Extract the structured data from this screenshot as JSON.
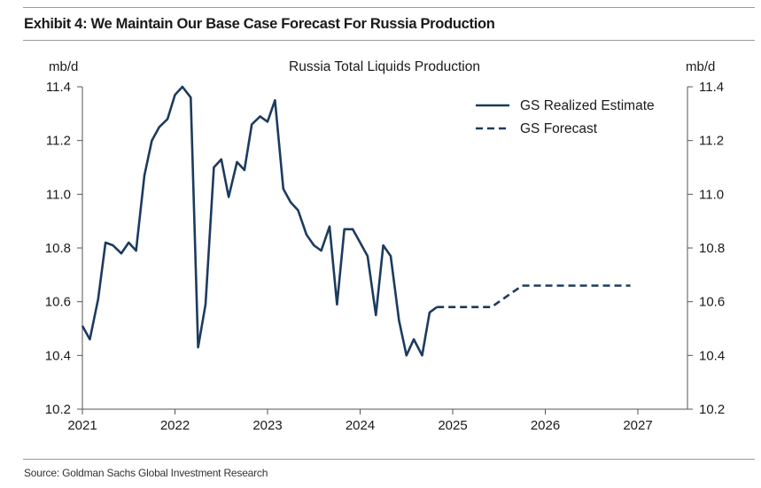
{
  "header": {
    "exhibit_title": "Exhibit 4: We Maintain Our Base Case Forecast For Russia Production"
  },
  "footer": {
    "source": "Source: Goldman Sachs Global Investment Research"
  },
  "colors": {
    "series": "#1c3b5e",
    "axis": "#555555",
    "rule": "#9a9a9a"
  },
  "chart_data": {
    "type": "line",
    "title": "Russia Total Liquids Production",
    "ylabel_left": "mb/d",
    "ylabel_right": "mb/d",
    "xlabel": "",
    "xlim": [
      2021.0,
      2027.5
    ],
    "ylim": [
      10.2,
      11.4
    ],
    "x_ticks": [
      2021,
      2022,
      2023,
      2024,
      2025,
      2026,
      2027
    ],
    "x_tick_labels": [
      "2021",
      "2022",
      "2023",
      "2024",
      "2025",
      "2026",
      "2027"
    ],
    "y_ticks": [
      10.2,
      10.4,
      10.6,
      10.8,
      11.0,
      11.2,
      11.4
    ],
    "y_tick_labels": [
      "10.2",
      "10.4",
      "10.6",
      "10.8",
      "11.0",
      "11.2",
      "11.4"
    ],
    "grid": false,
    "legend_position": "top-right",
    "series": [
      {
        "name": "GS Realized Estimate",
        "style": "solid",
        "points": [
          [
            2021.0,
            10.51
          ],
          [
            2021.08,
            10.46
          ],
          [
            2021.17,
            10.61
          ],
          [
            2021.25,
            10.82
          ],
          [
            2021.33,
            10.81
          ],
          [
            2021.42,
            10.78
          ],
          [
            2021.5,
            10.82
          ],
          [
            2021.58,
            10.79
          ],
          [
            2021.67,
            11.07
          ],
          [
            2021.75,
            11.2
          ],
          [
            2021.83,
            11.25
          ],
          [
            2021.92,
            11.28
          ],
          [
            2022.0,
            11.37
          ],
          [
            2022.08,
            11.4
          ],
          [
            2022.17,
            11.36
          ],
          [
            2022.25,
            10.43
          ],
          [
            2022.33,
            10.59
          ],
          [
            2022.42,
            11.1
          ],
          [
            2022.5,
            11.13
          ],
          [
            2022.58,
            10.99
          ],
          [
            2022.67,
            11.12
          ],
          [
            2022.75,
            11.09
          ],
          [
            2022.83,
            11.26
          ],
          [
            2022.92,
            11.29
          ],
          [
            2023.0,
            11.27
          ],
          [
            2023.08,
            11.35
          ],
          [
            2023.17,
            11.02
          ],
          [
            2023.25,
            10.97
          ],
          [
            2023.33,
            10.94
          ],
          [
            2023.42,
            10.85
          ],
          [
            2023.5,
            10.81
          ],
          [
            2023.58,
            10.79
          ],
          [
            2023.67,
            10.88
          ],
          [
            2023.75,
            10.59
          ],
          [
            2023.83,
            10.87
          ],
          [
            2023.92,
            10.87
          ],
          [
            2024.0,
            10.82
          ],
          [
            2024.08,
            10.77
          ],
          [
            2024.17,
            10.55
          ],
          [
            2024.25,
            10.81
          ],
          [
            2024.33,
            10.77
          ],
          [
            2024.42,
            10.53
          ],
          [
            2024.5,
            10.4
          ],
          [
            2024.58,
            10.46
          ],
          [
            2024.67,
            10.4
          ],
          [
            2024.75,
            10.56
          ],
          [
            2024.83,
            10.58
          ]
        ]
      },
      {
        "name": "GS Forecast",
        "style": "dashed",
        "points": [
          [
            2024.83,
            10.58
          ],
          [
            2025.0,
            10.58
          ],
          [
            2025.42,
            10.58
          ],
          [
            2025.5,
            10.6
          ],
          [
            2025.75,
            10.66
          ],
          [
            2026.0,
            10.66
          ],
          [
            2026.5,
            10.66
          ],
          [
            2026.92,
            10.66
          ]
        ]
      }
    ]
  }
}
